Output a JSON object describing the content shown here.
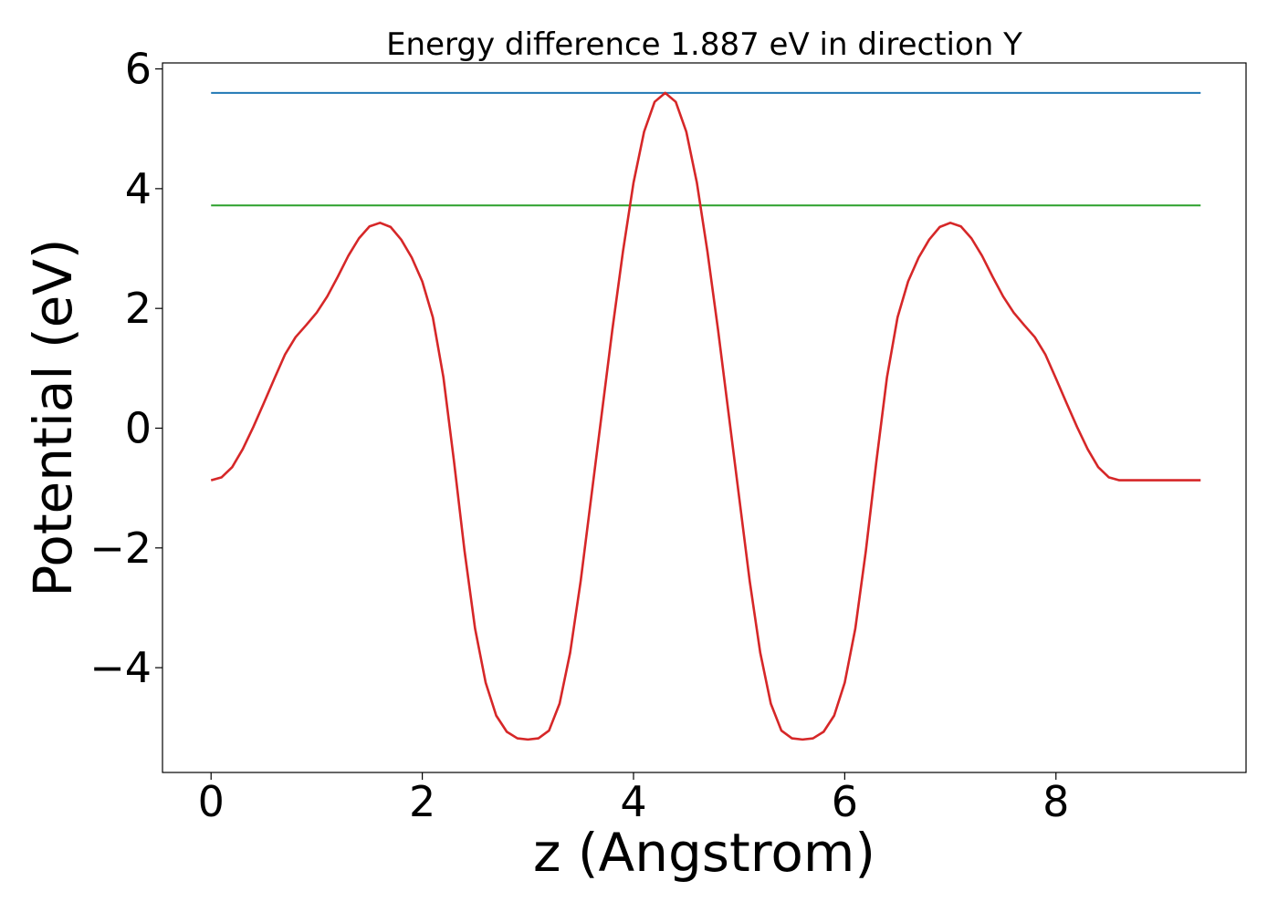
{
  "chart_data": {
    "type": "line",
    "title": "Energy difference 1.887 eV in direction Y",
    "xlabel": "z (Angstrom)",
    "ylabel": "Potential (eV)",
    "xlim": [
      -0.46,
      9.8
    ],
    "ylim": [
      -5.75,
      6.1
    ],
    "xticks": [
      0,
      2,
      4,
      6,
      8
    ],
    "xtick_labels": [
      "0",
      "2",
      "4",
      "6",
      "8"
    ],
    "yticks": [
      -4,
      -2,
      0,
      2,
      4,
      6
    ],
    "ytick_labels": [
      "−4",
      "−2",
      "0",
      "2",
      "4",
      "6"
    ],
    "grid": false,
    "legend": "none",
    "series": [
      {
        "color": "#1f77b4",
        "x": [
          0,
          9.37
        ],
        "y": [
          5.6,
          5.6
        ]
      },
      {
        "color": "#2ca02c",
        "x": [
          0,
          9.37
        ],
        "y": [
          3.72,
          3.72
        ]
      },
      {
        "color": "#d62728",
        "x": [
          0,
          0.1,
          0.2,
          0.3,
          0.4,
          0.5,
          0.6,
          0.7,
          0.8,
          0.9,
          1.0,
          1.1,
          1.2,
          1.3,
          1.4,
          1.5,
          1.6,
          1.7,
          1.8,
          1.9,
          2.0,
          2.1,
          2.2,
          2.3,
          2.4,
          2.5,
          2.6,
          2.7,
          2.8,
          2.9,
          3.0,
          3.1,
          3.2,
          3.3,
          3.4,
          3.5,
          3.6,
          3.7,
          3.8,
          3.9,
          4.0,
          4.1,
          4.2,
          4.3,
          4.4,
          4.5,
          4.6,
          4.7,
          4.8,
          4.9,
          5.0,
          5.1,
          5.2,
          5.3,
          5.4,
          5.5,
          5.6,
          5.7,
          5.8,
          5.9,
          6.0,
          6.1,
          6.2,
          6.3,
          6.4,
          6.5,
          6.6,
          6.7,
          6.8,
          6.9,
          7.0,
          7.1,
          7.2,
          7.3,
          7.4,
          7.5,
          7.6,
          7.7,
          7.8,
          7.9,
          8.0,
          8.1,
          8.2,
          8.3,
          8.4,
          8.5,
          8.6,
          8.7,
          8.8,
          8.9,
          9.0,
          9.1,
          9.2,
          9.3,
          9.37
        ],
        "y": [
          -0.87,
          -0.82,
          -0.65,
          -0.35,
          0.02,
          0.42,
          0.83,
          1.23,
          1.52,
          1.72,
          1.93,
          2.2,
          2.53,
          2.88,
          3.17,
          3.37,
          3.43,
          3.36,
          3.15,
          2.85,
          2.45,
          1.85,
          0.85,
          -0.55,
          -2.05,
          -3.35,
          -4.25,
          -4.8,
          -5.07,
          -5.18,
          -5.2,
          -5.18,
          -5.05,
          -4.6,
          -3.75,
          -2.55,
          -1.15,
          0.25,
          1.65,
          2.95,
          4.1,
          4.95,
          5.45,
          5.6,
          5.45,
          4.95,
          4.1,
          2.95,
          1.65,
          0.25,
          -1.15,
          -2.55,
          -3.75,
          -4.6,
          -5.05,
          -5.18,
          -5.2,
          -5.18,
          -5.07,
          -4.8,
          -4.25,
          -3.35,
          -2.05,
          -0.55,
          0.85,
          1.85,
          2.45,
          2.85,
          3.15,
          3.36,
          3.43,
          3.37,
          3.17,
          2.88,
          2.53,
          2.2,
          1.93,
          1.72,
          1.52,
          1.23,
          0.83,
          0.42,
          0.02,
          -0.35,
          -0.65,
          -0.82,
          -0.87,
          -0.87,
          -0.87,
          -0.87,
          -0.87,
          -0.87,
          -0.87,
          -0.87,
          -0.87
        ]
      }
    ]
  }
}
